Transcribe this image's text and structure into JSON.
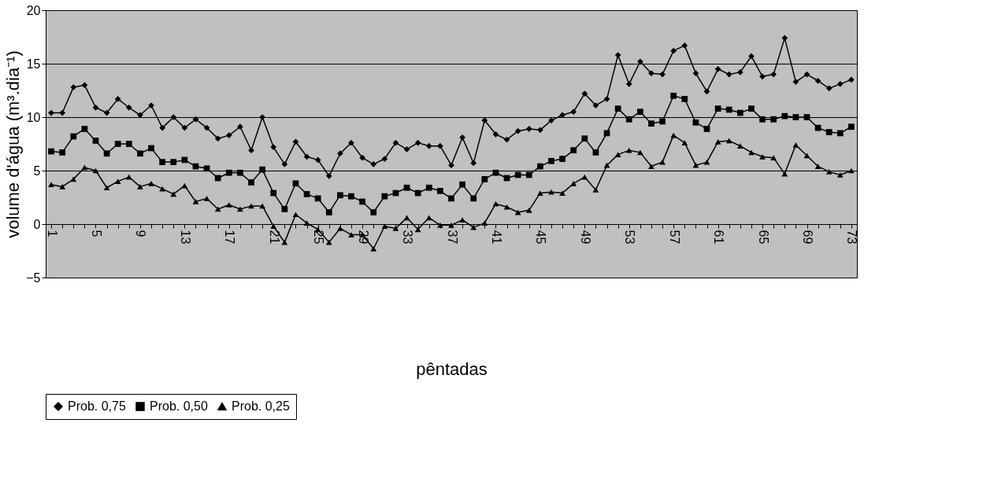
{
  "chart_data": {
    "type": "line",
    "xlabel": "pêntadas",
    "ylabel": "volume d'água (m³.dia⁻¹)",
    "categories": [
      "1",
      null,
      null,
      null,
      "5",
      null,
      null,
      null,
      "9",
      null,
      null,
      null,
      "13",
      null,
      null,
      null,
      "17",
      null,
      null,
      null,
      "21",
      null,
      null,
      null,
      "25",
      null,
      null,
      null,
      "29",
      null,
      null,
      null,
      "33",
      null,
      null,
      null,
      "37",
      null,
      null,
      null,
      "41",
      null,
      null,
      null,
      "45",
      null,
      null,
      null,
      "49",
      null,
      null,
      null,
      "53",
      null,
      null,
      null,
      "57",
      null,
      null,
      null,
      "61",
      null,
      null,
      null,
      "65",
      null,
      null,
      null,
      "69",
      null,
      null,
      null,
      "73"
    ],
    "series": [
      {
        "name": "Prob. 0,75",
        "color": "#000000",
        "marker": "diamond",
        "values": [
          10.4,
          10.4,
          12.8,
          13.0,
          10.9,
          10.4,
          11.7,
          10.9,
          10.2,
          11.1,
          9.0,
          10.0,
          9.0,
          9.8,
          9.0,
          8.0,
          8.3,
          9.1,
          6.9,
          10.0,
          7.2,
          5.6,
          7.7,
          6.3,
          6.0,
          4.5,
          6.6,
          7.6,
          6.2,
          5.6,
          6.1,
          7.6,
          7.0,
          7.6,
          7.3,
          7.3,
          5.5,
          8.1,
          5.7,
          9.7,
          8.4,
          7.9,
          8.7,
          8.9,
          8.8,
          9.7,
          10.2,
          10.5,
          12.2,
          11.1,
          11.7,
          15.8,
          13.1,
          15.2,
          14.1,
          14.0,
          16.2,
          16.7,
          14.1,
          12.4,
          14.5,
          14.0,
          14.2,
          15.7,
          13.8,
          14.0,
          17.4,
          13.3,
          14.0,
          13.4,
          12.7,
          13.1,
          13.5
        ]
      },
      {
        "name": "Prob. 0,50",
        "color": "#000000",
        "marker": "square",
        "values": [
          6.8,
          6.7,
          8.2,
          8.9,
          7.8,
          6.6,
          7.5,
          7.5,
          6.6,
          7.1,
          5.8,
          5.8,
          6.0,
          5.4,
          5.2,
          4.3,
          4.8,
          4.8,
          3.9,
          5.1,
          2.9,
          1.4,
          3.8,
          2.8,
          2.4,
          1.1,
          2.7,
          2.6,
          2.1,
          1.1,
          2.6,
          2.9,
          3.4,
          2.9,
          3.4,
          3.1,
          2.4,
          3.7,
          2.4,
          4.2,
          4.8,
          4.3,
          4.6,
          4.6,
          5.4,
          5.9,
          6.1,
          6.9,
          8.0,
          6.7,
          8.5,
          10.8,
          9.8,
          10.5,
          9.4,
          9.6,
          12.0,
          11.7,
          9.5,
          8.9,
          10.8,
          10.7,
          10.4,
          10.8,
          9.8,
          9.8,
          10.1,
          10.0,
          10.0,
          9.0,
          8.6,
          8.5,
          9.1
        ]
      },
      {
        "name": "Prob. 0,25",
        "color": "#000000",
        "marker": "triangle",
        "values": [
          3.7,
          3.5,
          4.2,
          5.3,
          5.0,
          3.4,
          4.0,
          4.4,
          3.5,
          3.8,
          3.3,
          2.8,
          3.6,
          2.1,
          2.4,
          1.4,
          1.8,
          1.4,
          1.7,
          1.7,
          -0.2,
          -1.7,
          0.9,
          0.1,
          -0.5,
          -1.7,
          -0.4,
          -1.0,
          -1.0,
          -2.3,
          -0.2,
          -0.4,
          0.6,
          -0.5,
          0.6,
          -0.1,
          -0.1,
          0.4,
          -0.3,
          0.1,
          1.9,
          1.6,
          1.1,
          1.3,
          2.9,
          3.0,
          2.9,
          3.8,
          4.4,
          3.2,
          5.5,
          6.5,
          6.9,
          6.7,
          5.4,
          5.8,
          8.3,
          7.6,
          5.5,
          5.8,
          7.7,
          7.8,
          7.3,
          6.7,
          6.3,
          6.2,
          4.7,
          7.4,
          6.4,
          5.4,
          4.9,
          4.6,
          5.0
        ]
      }
    ],
    "ylim": [
      -5,
      20
    ],
    "yticks": [
      -5,
      0,
      5,
      10,
      15,
      20
    ],
    "grid": "y",
    "legend": "bottom",
    "line_style": "solid"
  }
}
